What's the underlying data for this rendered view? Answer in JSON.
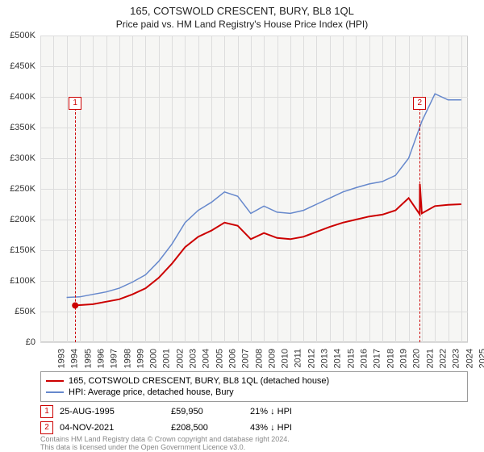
{
  "title": "165, COTSWOLD CRESCENT, BURY, BL8 1QL",
  "subtitle": "Price paid vs. HM Land Registry's House Price Index (HPI)",
  "chart": {
    "type": "line",
    "background_color": "#f6f6f4",
    "grid_color": "#dddddd",
    "border_color": "#cccccc",
    "x_years": [
      1993,
      1994,
      1995,
      1996,
      1997,
      1998,
      1999,
      2000,
      2001,
      2002,
      2003,
      2004,
      2005,
      2006,
      2007,
      2008,
      2009,
      2010,
      2011,
      2012,
      2013,
      2014,
      2015,
      2016,
      2017,
      2018,
      2019,
      2020,
      2021,
      2022,
      2023,
      2024,
      2025
    ],
    "y_ticks": [
      0,
      50000,
      100000,
      150000,
      200000,
      250000,
      300000,
      350000,
      400000,
      450000,
      500000
    ],
    "y_tick_labels": [
      "£0",
      "£50K",
      "£100K",
      "£150K",
      "£200K",
      "£250K",
      "£300K",
      "£350K",
      "£400K",
      "£450K",
      "£500K"
    ],
    "ylim": [
      0,
      500000
    ],
    "xlim": [
      1993,
      2025.5
    ],
    "label_fontsize": 11,
    "series": [
      {
        "name": "165, COTSWOLD CRESCENT, BURY, BL8 1QL (detached house)",
        "color": "#cc0000",
        "line_width": 2,
        "points": [
          [
            1995.65,
            59950
          ],
          [
            1996,
            60500
          ],
          [
            1997,
            62000
          ],
          [
            1998,
            66000
          ],
          [
            1999,
            70000
          ],
          [
            2000,
            78000
          ],
          [
            2001,
            88000
          ],
          [
            2002,
            105000
          ],
          [
            2003,
            128000
          ],
          [
            2004,
            155000
          ],
          [
            2005,
            172000
          ],
          [
            2006,
            182000
          ],
          [
            2007,
            195000
          ],
          [
            2008,
            190000
          ],
          [
            2009,
            168000
          ],
          [
            2010,
            178000
          ],
          [
            2011,
            170000
          ],
          [
            2012,
            168000
          ],
          [
            2013,
            172000
          ],
          [
            2014,
            180000
          ],
          [
            2015,
            188000
          ],
          [
            2016,
            195000
          ],
          [
            2017,
            200000
          ],
          [
            2018,
            205000
          ],
          [
            2019,
            208000
          ],
          [
            2020,
            215000
          ],
          [
            2021,
            235000
          ],
          [
            2021.84,
            208500
          ],
          [
            2021.85,
            258000
          ],
          [
            2022,
            210000
          ],
          [
            2023,
            222000
          ],
          [
            2024,
            224000
          ],
          [
            2025,
            225000
          ]
        ],
        "start_marker": {
          "x": 1995.65,
          "y": 59950,
          "color": "#cc0000"
        }
      },
      {
        "name": "HPI: Average price, detached house, Bury",
        "color": "#6688cc",
        "line_width": 1.5,
        "points": [
          [
            1995,
            73000
          ],
          [
            1996,
            74000
          ],
          [
            1997,
            78000
          ],
          [
            1998,
            82000
          ],
          [
            1999,
            88000
          ],
          [
            2000,
            98000
          ],
          [
            2001,
            110000
          ],
          [
            2002,
            132000
          ],
          [
            2003,
            160000
          ],
          [
            2004,
            195000
          ],
          [
            2005,
            215000
          ],
          [
            2006,
            228000
          ],
          [
            2007,
            245000
          ],
          [
            2008,
            238000
          ],
          [
            2009,
            210000
          ],
          [
            2010,
            222000
          ],
          [
            2011,
            212000
          ],
          [
            2012,
            210000
          ],
          [
            2013,
            215000
          ],
          [
            2014,
            225000
          ],
          [
            2015,
            235000
          ],
          [
            2016,
            245000
          ],
          [
            2017,
            252000
          ],
          [
            2018,
            258000
          ],
          [
            2019,
            262000
          ],
          [
            2020,
            272000
          ],
          [
            2021,
            300000
          ],
          [
            2022,
            360000
          ],
          [
            2023,
            405000
          ],
          [
            2024,
            395000
          ],
          [
            2025,
            395000
          ]
        ]
      }
    ],
    "event_markers": [
      {
        "id": "1",
        "x": 1995.65,
        "color": "#cc0000",
        "box_y": 400000
      },
      {
        "id": "2",
        "x": 2021.84,
        "color": "#cc0000",
        "box_y": 400000
      }
    ]
  },
  "legend": {
    "rows": [
      {
        "color": "#cc0000",
        "label": "165, COTSWOLD CRESCENT, BURY, BL8 1QL (detached house)"
      },
      {
        "color": "#6688cc",
        "label": "HPI: Average price, detached house, Bury"
      }
    ]
  },
  "transactions": [
    {
      "id": "1",
      "color": "#cc0000",
      "date": "25-AUG-1995",
      "price": "£59,950",
      "pct": "21% ↓ HPI"
    },
    {
      "id": "2",
      "color": "#cc0000",
      "date": "04-NOV-2021",
      "price": "£208,500",
      "pct": "43% ↓ HPI"
    }
  ],
  "footer_line1": "Contains HM Land Registry data © Crown copyright and database right 2024.",
  "footer_line2": "This data is licensed under the Open Government Licence v3.0."
}
